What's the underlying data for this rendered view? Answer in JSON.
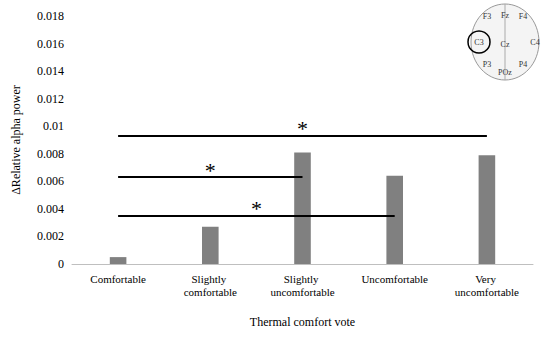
{
  "chart_data": {
    "type": "bar",
    "x_label": "Thermal comfort vote",
    "y_label": "ΔRelative alpha power",
    "categories": [
      "Comfortable",
      "Slightly comfortable",
      "Slightly uncomfortable",
      "Uncomfortable",
      "Very uncomfortable"
    ],
    "values": [
      0.0005,
      0.0027,
      0.0081,
      0.0064,
      0.0079
    ],
    "color": "#808080",
    "ylim": [
      0,
      0.018
    ],
    "yticks": [
      0,
      0.002,
      0.004,
      0.006,
      0.008,
      0.01,
      0.012,
      0.014,
      0.016,
      0.018
    ],
    "grid": false,
    "significance": [
      {
        "from": "Comfortable",
        "to": "Very uncomfortable",
        "y": 0.0093,
        "label": "*"
      },
      {
        "from": "Comfortable",
        "to": "Slightly uncomfortable",
        "y": 0.0063,
        "label": "*"
      },
      {
        "from": "Comfortable",
        "to": "Uncomfortable",
        "y": 0.0035,
        "label": "*"
      }
    ],
    "inset": {
      "labels": [
        "F3",
        "Fz",
        "F4",
        "C3",
        "Cz",
        "C4",
        "P3",
        "P4",
        "POz"
      ],
      "highlight": "C3"
    }
  }
}
